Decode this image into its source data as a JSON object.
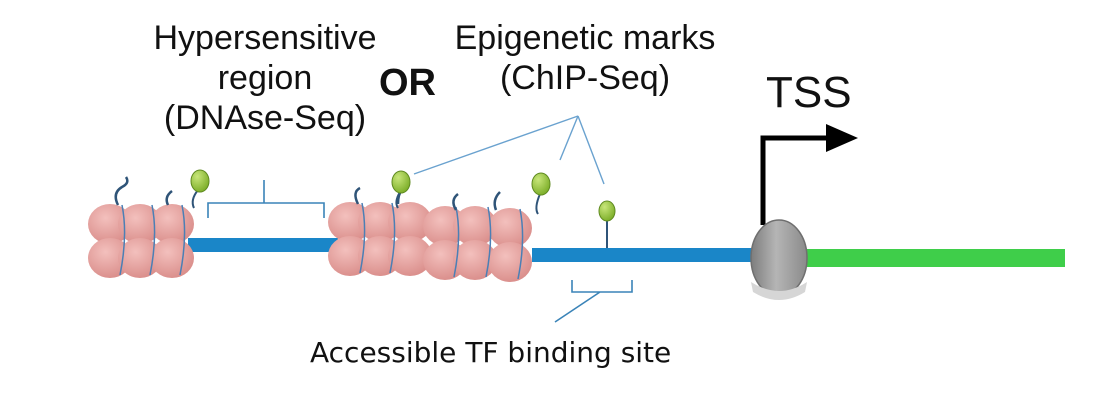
{
  "labels": {
    "hypersensitive_line1": "Hypersensitive",
    "hypersensitive_line2": "region",
    "hypersensitive_line3": "(DNAse-Seq)",
    "or": "OR",
    "epigenetic_line1": "Epigenetic marks",
    "epigenetic_line2": "(ChIP-Seq)",
    "tss": "TSS",
    "binding_site": "Accessible TF binding site"
  },
  "colors": {
    "nucleosome": "#e39a98",
    "nucleosome_edge": "#c97a78",
    "dna_open": "#1a86c8",
    "gene_body": "#3fce4a",
    "mark": "#8fc33a",
    "bracket": "#3a84b8",
    "polymerase": "#a9a9a9",
    "tss_arrow": "#000000"
  }
}
